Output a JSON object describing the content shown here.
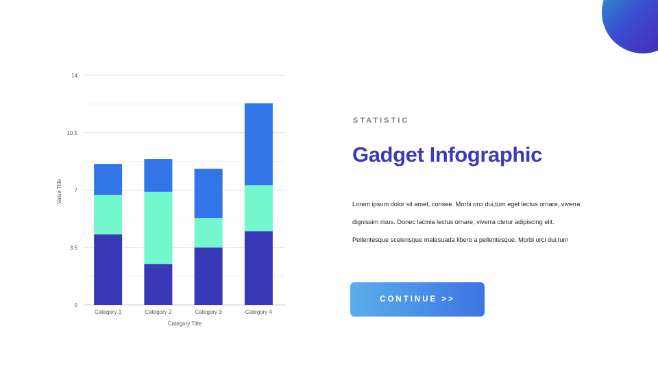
{
  "header": {
    "eyebrow": "STATISTIC",
    "title": "Gadget Infographic"
  },
  "body": {
    "lines": [
      "Lorem ipsum dolor sit amet, consee. Morbi orci dui,tum eget lectus ornare, viverra",
      "dignissim risus. Donec lacinia  lectus ornare, viverra ctetur adipiscing elit.",
      "Pellentesque scelerisque malesuada libero a pellentesque. Morbi orci dui,tum"
    ]
  },
  "cta": {
    "label": "CONTINUE >>"
  },
  "colors": {
    "series1": "#3939b8",
    "series2": "#73f7cc",
    "series3": "#3275e6",
    "title": "#3a3bb8",
    "button_start": "#5aaeea",
    "button_end": "#3d74e4"
  },
  "chart_data": {
    "type": "bar",
    "stacked": true,
    "categories": [
      "Category 1",
      "Category 2",
      "Category 3",
      "Category 4"
    ],
    "series": [
      {
        "values": [
          4.3,
          2.5,
          3.5,
          4.5
        ]
      },
      {
        "values": [
          2.4,
          4.4,
          1.8,
          2.8
        ]
      },
      {
        "values": [
          1.9,
          2.0,
          3.0,
          5.0
        ]
      }
    ],
    "xlabel": "Category Title",
    "ylabel": "Value Title",
    "ylim": [
      0,
      14
    ],
    "yticks": [
      "0",
      "3.5",
      "7",
      "10.5",
      "14"
    ],
    "grid": true
  }
}
